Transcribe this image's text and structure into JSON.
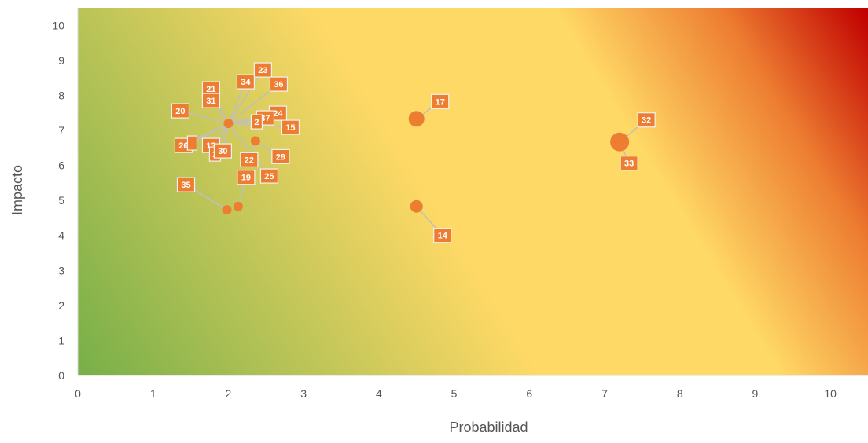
{
  "chart_data": {
    "type": "scatter",
    "subtype": "bubble-risk-matrix",
    "title": "",
    "xlabel": "Probabilidad",
    "ylabel": "Impacto",
    "xlim": [
      0,
      10.5
    ],
    "ylim": [
      0,
      10.5
    ],
    "xticks": [
      "0",
      "1",
      "2",
      "3",
      "4",
      "5",
      "6",
      "7",
      "8",
      "9",
      "10"
    ],
    "yticks": [
      "0",
      "1",
      "2",
      "3",
      "4",
      "5",
      "6",
      "7",
      "8",
      "9",
      "10"
    ],
    "grid": false,
    "legend": "none",
    "background": "diagonal gradient: green (low-left) to yellow to red (upper-right)",
    "colors": {
      "green": "#70ad47",
      "yellow": "#ffd966",
      "orange": "#ed7d31",
      "red": "#c00000",
      "marker": "#ed7d31",
      "leader_line": "#bfbfbf",
      "label_border": "#f2f2f2",
      "axis_line": "#d9d9d9",
      "text": "#555555"
    },
    "points": [
      {
        "id": "17",
        "x": 4.5,
        "y": 7.33,
        "size": 3
      },
      {
        "id": "14",
        "x": 4.5,
        "y": 4.83,
        "size": 2
      },
      {
        "id": "32",
        "x": 7.2,
        "y": 6.67,
        "size": 4
      },
      {
        "id": "33",
        "x": 7.2,
        "y": 6.67,
        "size": 4
      },
      {
        "id": "35",
        "x": 1.98,
        "y": 4.73,
        "size": 1
      },
      {
        "id": "19",
        "x": 2.13,
        "y": 4.83,
        "size": 1
      },
      {
        "id": "22",
        "x": 2.36,
        "y": 6.7,
        "size": 1
      },
      {
        "id": "29",
        "x": 2.36,
        "y": 6.7,
        "size": 1
      },
      {
        "id": "20",
        "x": 2.0,
        "y": 7.2,
        "size": 1
      },
      {
        "id": "21",
        "x": 2.0,
        "y": 7.2,
        "size": 1
      },
      {
        "id": "31",
        "x": 2.0,
        "y": 7.2,
        "size": 1
      },
      {
        "id": "34",
        "x": 2.0,
        "y": 7.2,
        "size": 1
      },
      {
        "id": "23",
        "x": 2.0,
        "y": 7.2,
        "size": 1
      },
      {
        "id": "36",
        "x": 2.0,
        "y": 7.2,
        "size": 1
      },
      {
        "id": "24",
        "x": 2.0,
        "y": 7.2,
        "size": 1
      },
      {
        "id": "37",
        "x": 2.0,
        "y": 7.2,
        "size": 1
      },
      {
        "id": "2",
        "x": 2.0,
        "y": 7.2,
        "size": 1
      },
      {
        "id": "15",
        "x": 2.0,
        "y": 7.2,
        "size": 1
      },
      {
        "id": "26",
        "x": 2.0,
        "y": 7.2,
        "size": 1
      },
      {
        "id": "",
        "x": 2.0,
        "y": 7.2,
        "size": 1
      },
      {
        "id": "13",
        "x": 2.0,
        "y": 7.2,
        "size": 1
      },
      {
        "id": "2",
        "x": 2.0,
        "y": 7.2,
        "size": 1
      },
      {
        "id": "30",
        "x": 2.0,
        "y": 7.2,
        "size": 1
      },
      {
        "id": "25",
        "x": 2.0,
        "y": 7.2,
        "size": 1
      }
    ]
  }
}
